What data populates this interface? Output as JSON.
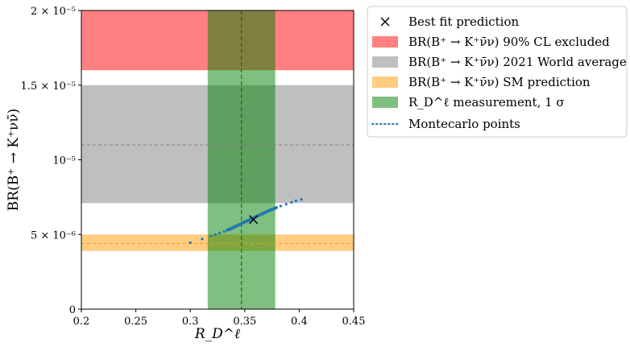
{
  "chart_data": {
    "type": "scatter",
    "xlabel": "R_D^ℓ",
    "ylabel": "BR(B⁺ → K⁺νν̄)",
    "xlim": [
      0.2,
      0.45
    ],
    "ylim": [
      0,
      2e-05
    ],
    "x_ticks": [
      {
        "value": 0.2,
        "label": "0.2"
      },
      {
        "value": 0.25,
        "label": "0.25"
      },
      {
        "value": 0.3,
        "label": "0.3"
      },
      {
        "value": 0.35,
        "label": "0.35"
      },
      {
        "value": 0.4,
        "label": "0.4"
      },
      {
        "value": 0.45,
        "label": "0.45"
      }
    ],
    "y_ticks": [
      {
        "value": 0,
        "label": "0"
      },
      {
        "value": 5e-06,
        "label": "5 × 10⁻⁶"
      },
      {
        "value": 1e-05,
        "label": "10⁻⁵"
      },
      {
        "value": 1.5e-05,
        "label": "1.5 × 10⁻⁵"
      },
      {
        "value": 2e-05,
        "label": "2 × 10⁻⁵"
      }
    ],
    "grid": false,
    "legend_position": "outside-right-top",
    "bands": [
      {
        "name": "BR(B⁺ → K⁺ν̄ν) 90% CL excluded",
        "orientation": "horizontal",
        "range": [
          1.6e-05,
          2e-05
        ],
        "color": "#ff8080"
      },
      {
        "name": "BR(B⁺ → K⁺ν̄ν) 2021 World average",
        "orientation": "horizontal",
        "range": [
          7.1e-06,
          1.5e-05
        ],
        "center": 1.1e-05,
        "color": "#bfbfbf"
      },
      {
        "name": "BR(B⁺ → K⁺ν̄ν) SM prediction",
        "orientation": "horizontal",
        "range": [
          3.9e-06,
          5e-06
        ],
        "center": 4.4e-06,
        "color": "#ffcc80"
      },
      {
        "name": "R_D^ℓ measurement, 1 σ",
        "orientation": "vertical",
        "range": [
          0.316,
          0.378
        ],
        "center": 0.347,
        "color": "#55aa55"
      }
    ],
    "best_fit": {
      "name": "Best fit prediction",
      "x": 0.358,
      "y": 6e-06,
      "marker": "x"
    },
    "montecarlo": {
      "name": "Montecarlo points",
      "color": "#1f77b4",
      "points": [
        [
          0.3,
          4.45e-06
        ],
        [
          0.311,
          4.7e-06
        ],
        [
          0.319,
          4.9e-06
        ],
        [
          0.323,
          5e-06
        ],
        [
          0.327,
          5.1e-06
        ],
        [
          0.331,
          5.2e-06
        ],
        [
          0.334,
          5.3e-06
        ],
        [
          0.336,
          5.35e-06
        ],
        [
          0.338,
          5.42e-06
        ],
        [
          0.34,
          5.48e-06
        ],
        [
          0.342,
          5.55e-06
        ],
        [
          0.344,
          5.62e-06
        ],
        [
          0.346,
          5.7e-06
        ],
        [
          0.348,
          5.77e-06
        ],
        [
          0.35,
          5.85e-06
        ],
        [
          0.352,
          5.9e-06
        ],
        [
          0.354,
          5.97e-06
        ],
        [
          0.356,
          6.03e-06
        ],
        [
          0.358,
          6.1e-06
        ],
        [
          0.36,
          6.17e-06
        ],
        [
          0.362,
          6.25e-06
        ],
        [
          0.364,
          6.32e-06
        ],
        [
          0.366,
          6.38e-06
        ],
        [
          0.368,
          6.45e-06
        ],
        [
          0.37,
          6.52e-06
        ],
        [
          0.372,
          6.58e-06
        ],
        [
          0.374,
          6.65e-06
        ],
        [
          0.376,
          6.7e-06
        ],
        [
          0.379,
          6.8e-06
        ],
        [
          0.383,
          6.9e-06
        ],
        [
          0.388,
          7.02e-06
        ],
        [
          0.393,
          7.15e-06
        ],
        [
          0.397,
          7.25e-06
        ],
        [
          0.402,
          7.35e-06
        ]
      ]
    }
  },
  "legend": {
    "items": [
      {
        "kind": "best-fit",
        "label": "Best fit prediction"
      },
      {
        "kind": "excluded",
        "label": "BR(B⁺ → K⁺ν̄ν) 90% CL excluded"
      },
      {
        "kind": "world-average",
        "label": "BR(B⁺ → K⁺ν̄ν) 2021 World average"
      },
      {
        "kind": "sm-prediction",
        "label": "BR(B⁺ → K⁺ν̄ν) SM prediction"
      },
      {
        "kind": "rd-measurement",
        "label": "R_D^ℓ measurement, 1 σ"
      },
      {
        "kind": "montecarlo",
        "label": "Montecarlo points"
      }
    ]
  }
}
